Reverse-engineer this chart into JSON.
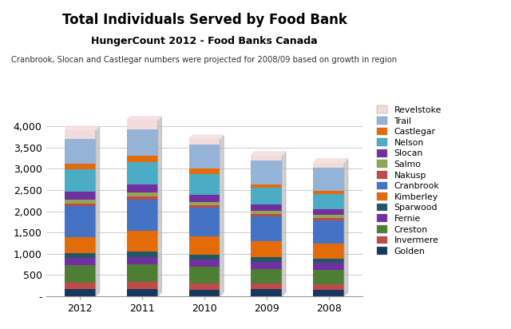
{
  "title": "Total Individuals Served by Food Bank",
  "subtitle": "HungerCount 2012 - Food Banks Canada",
  "note": "Cranbrook, Slocan and Castlegar numbers were projected for 2008/09 based on growth in region",
  "years": [
    "2012",
    "2011",
    "2010",
    "2009",
    "2008"
  ],
  "categories": [
    "Golden",
    "Invermere",
    "Creston",
    "Fernie",
    "Sparwood",
    "Kimberley",
    "Cranbrook",
    "Nakusp",
    "Salmo",
    "Slocan",
    "Nelson",
    "Castlegar",
    "Trail",
    "Revelstoke"
  ],
  "colors": [
    "#17375E",
    "#BE4B48",
    "#4E7E34",
    "#7030A0",
    "#215868",
    "#E36C09",
    "#4472C4",
    "#BE4B48",
    "#93A653",
    "#7030A0",
    "#4BACC6",
    "#E36C09",
    "#95B3D7",
    "#F2DCDB"
  ],
  "data": {
    "Golden": [
      170,
      175,
      155,
      160,
      155
    ],
    "Invermere": [
      155,
      160,
      145,
      130,
      130
    ],
    "Creston": [
      400,
      410,
      395,
      355,
      340
    ],
    "Fernie": [
      175,
      175,
      165,
      165,
      165
    ],
    "Sparwood": [
      120,
      130,
      120,
      115,
      100
    ],
    "Kimberley": [
      370,
      490,
      420,
      370,
      355
    ],
    "Cranbrook": [
      725,
      740,
      680,
      590,
      540
    ],
    "Nakusp": [
      70,
      70,
      60,
      60,
      55
    ],
    "Salmo": [
      95,
      90,
      80,
      75,
      70
    ],
    "Slocan": [
      185,
      185,
      170,
      145,
      130
    ],
    "Nelson": [
      520,
      540,
      495,
      390,
      370
    ],
    "Castlegar": [
      130,
      140,
      130,
      80,
      70
    ],
    "Trail": [
      600,
      625,
      560,
      560,
      545
    ],
    "Revelstoke": [
      200,
      215,
      130,
      120,
      125
    ]
  },
  "ylim": [
    0,
    4500
  ],
  "yticks": [
    0,
    500,
    1000,
    1500,
    2000,
    2500,
    3000,
    3500,
    4000
  ],
  "ytick_labels": [
    "-",
    "500",
    "1,000",
    "1,500",
    "2,000",
    "2,500",
    "3,000",
    "3,500",
    "4,000"
  ],
  "bg_color": "#FFFFFF",
  "bar_width": 0.5,
  "fig_width": 6.4,
  "fig_height": 4.12
}
